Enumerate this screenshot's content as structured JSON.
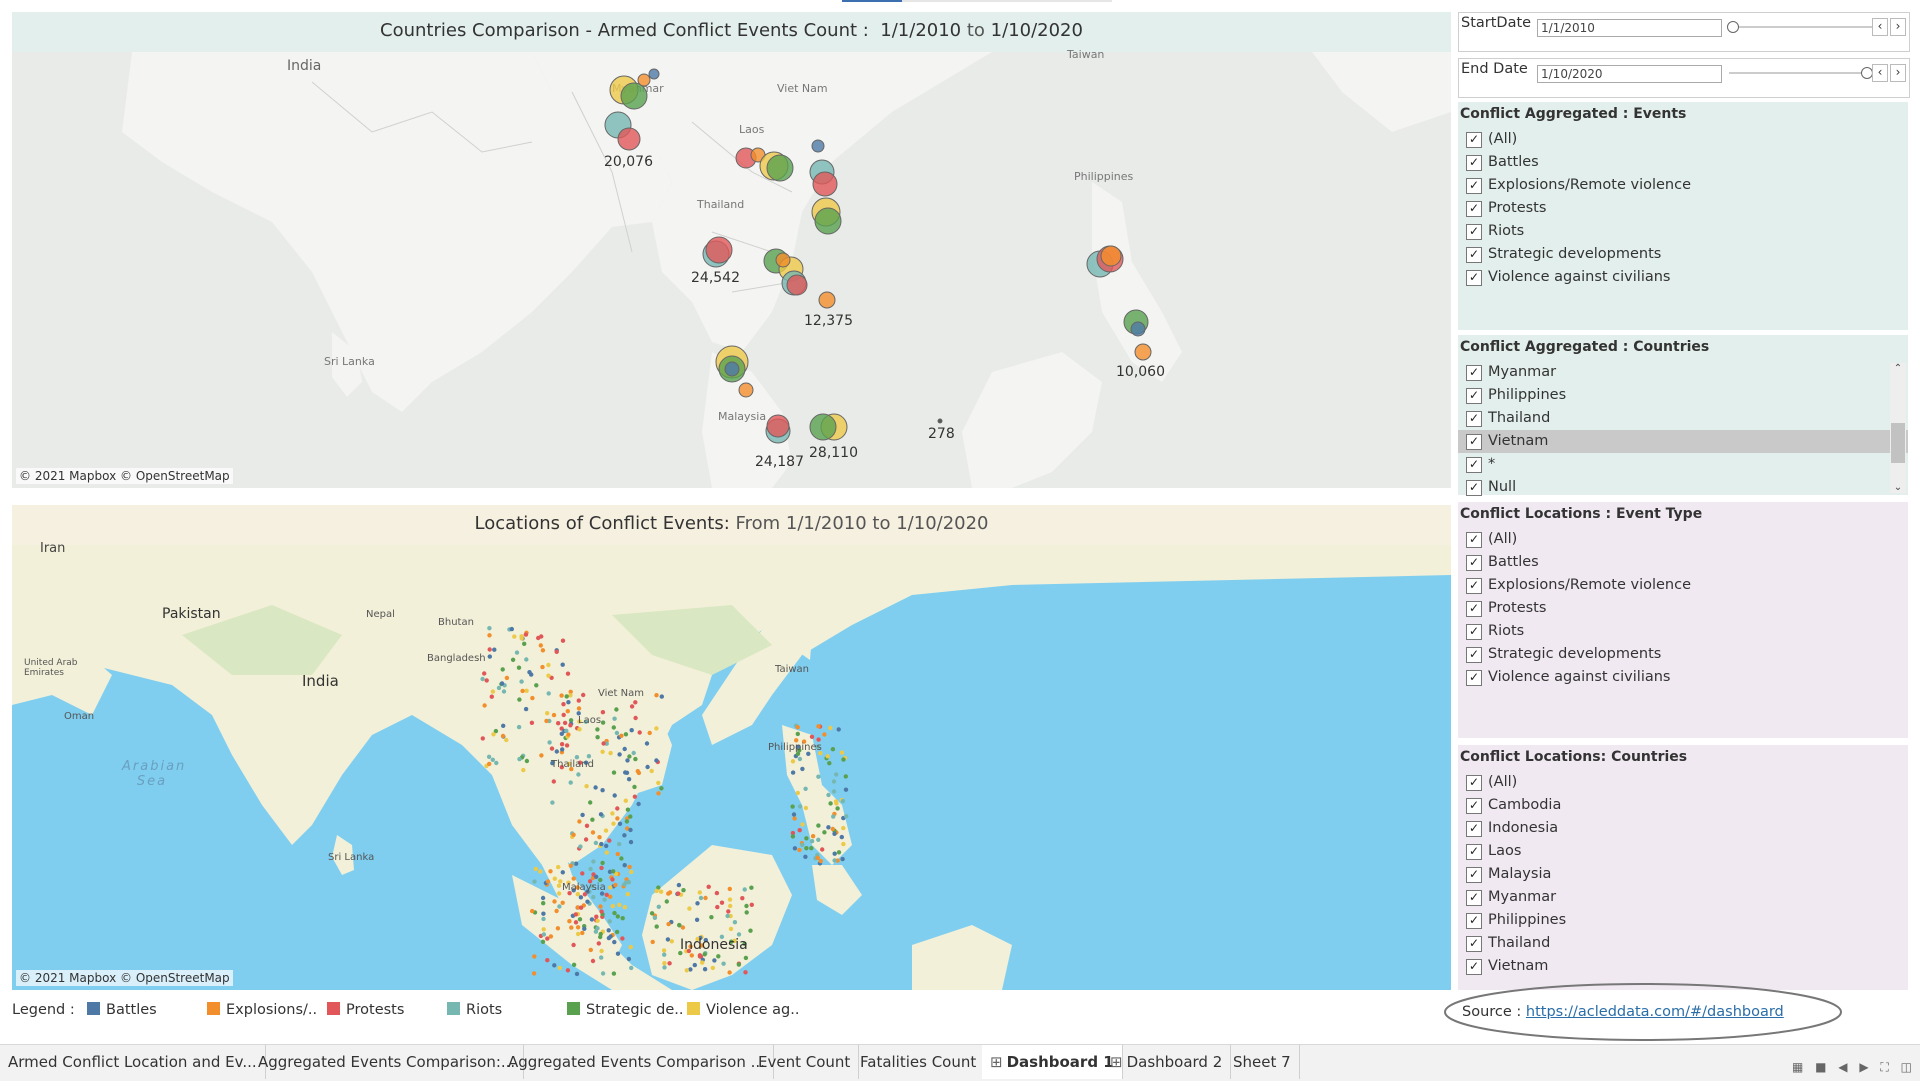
{
  "map1": {
    "title_main": "Countries Comparison - Armed Conflict Events Count :",
    "start": "1/1/2010",
    "to": "to",
    "end": "1/10/2020",
    "attribution": "© 2021 Mapbox © OpenStreetMap",
    "place_labels": [
      "India",
      "Sri Lanka",
      "Myanmar",
      "Viet Nam",
      "Laos",
      "Thailand",
      "Philippines",
      "Malaysia",
      "Taiwan"
    ],
    "count_labels": [
      "20,076",
      "24,542",
      "12,375",
      "10,060",
      "24,187",
      "28,110",
      "278"
    ]
  },
  "map2": {
    "title_main": "Locations of Conflict Events:",
    "title_dim": "From 1/1/2010 to 1/10/2020",
    "attribution": "© 2021 Mapbox © OpenStreetMap",
    "place_labels": [
      "Iran",
      "Pakistan",
      "Nepal",
      "Bhutan",
      "Bangladesh",
      "India",
      "United Arab Emirates",
      "Oman",
      "Arabian Sea",
      "Sri Lanka",
      "Viet Nam",
      "Laos",
      "Thailand",
      "Taiwan",
      "Philippines",
      "Malaysia",
      "Indonesia"
    ]
  },
  "filters": {
    "start_date": {
      "label": "StartDate",
      "value": "1/1/2010"
    },
    "end_date": {
      "label": "End Date",
      "value": "1/10/2020"
    },
    "events": {
      "title": "Conflict Aggregated : Events",
      "items": [
        "(All)",
        "Battles",
        "Explosions/Remote violence",
        "Protests",
        "Riots",
        "Strategic developments",
        "Violence against civilians"
      ]
    },
    "countries": {
      "title": "Conflict Aggregated :  Countries",
      "items": [
        "Myanmar",
        "Philippines",
        "Thailand",
        "Vietnam",
        "*",
        "Null"
      ],
      "highlighted": "Vietnam"
    },
    "event_type": {
      "title": "Conflict Locations : Event Type",
      "items": [
        "(All)",
        "Battles",
        "Explosions/Remote violence",
        "Protests",
        "Riots",
        "Strategic developments",
        "Violence against civilians"
      ]
    },
    "loc_countries": {
      "title": "Conflict Locations: Countries",
      "items": [
        "(All)",
        "Cambodia",
        "Indonesia",
        "Laos",
        "Malaysia",
        "Myanmar",
        "Philippines",
        "Thailand",
        "Vietnam"
      ]
    }
  },
  "legend": {
    "title": "Legend :",
    "items": [
      {
        "label": "Battles",
        "color": "#4e79a7"
      },
      {
        "label": "Explosions/..",
        "color": "#f28e2b"
      },
      {
        "label": "Protests",
        "color": "#e15759"
      },
      {
        "label": "Riots",
        "color": "#76b7b2"
      },
      {
        "label": "Strategic de..",
        "color": "#59a14f"
      },
      {
        "label": "Violence ag..",
        "color": "#edc948"
      }
    ]
  },
  "source": {
    "label": "Source :",
    "url_text": "https://acleddata.com/#/dashboard"
  },
  "tabs": [
    {
      "label": "Armed Conflict Location and Ev...",
      "active": false
    },
    {
      "label": "Aggregated Events Comparison:...",
      "active": false
    },
    {
      "label": "Aggregated Events Comparison ...",
      "active": false
    },
    {
      "label": "Event Count",
      "active": false
    },
    {
      "label": "Fatalities Count",
      "active": false
    },
    {
      "label": "Dashboard 1",
      "active": true
    },
    {
      "label": "Dashboard 2",
      "active": false
    },
    {
      "label": "Sheet 7",
      "active": false
    }
  ],
  "colors": {
    "battles": "#4e79a7",
    "explosions": "#f28e2b",
    "protests": "#e15759",
    "riots": "#76b7b2",
    "strategic": "#59a14f",
    "violence": "#edc948",
    "link": "#2a6ea8",
    "ocean2": "#7fcef0",
    "land2": "#f2f0d8"
  }
}
